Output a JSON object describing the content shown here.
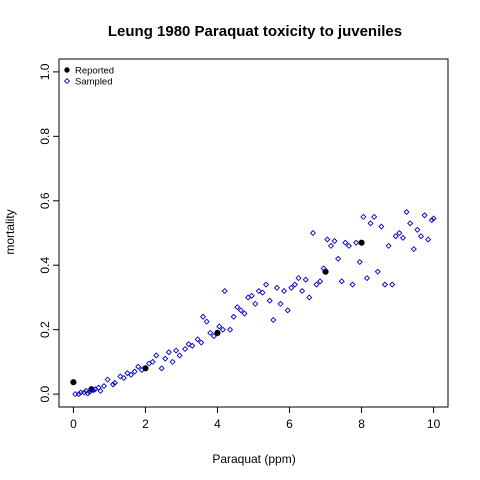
{
  "chart_data": {
    "type": "scatter",
    "title": "Leung 1980 Paraquat toxicity to juveniles",
    "xlabel": "Paraquat (ppm)",
    "ylabel": "mortality",
    "xlim": [
      -0.4,
      10.4
    ],
    "ylim": [
      -0.04,
      1.04
    ],
    "x_ticks": [
      "0",
      "2",
      "4",
      "6",
      "8",
      "10"
    ],
    "y_ticks": [
      "0.0",
      "0.2",
      "0.4",
      "0.6",
      "0.8",
      "1.0"
    ],
    "grid": false,
    "legend": {
      "position": "top-left",
      "entries": [
        {
          "label": "Reported",
          "marker": "filled-circle",
          "color": "#000000"
        },
        {
          "label": "Sampled",
          "marker": "open-diamond",
          "color": "#0000cc"
        }
      ]
    },
    "series": [
      {
        "name": "Reported",
        "marker": "filled-circle",
        "color": "#000000",
        "points": [
          {
            "x": 0.0,
            "y": 0.037
          },
          {
            "x": 0.5,
            "y": 0.015
          },
          {
            "x": 2.0,
            "y": 0.08
          },
          {
            "x": 4.0,
            "y": 0.19
          },
          {
            "x": 7.0,
            "y": 0.38
          },
          {
            "x": 8.0,
            "y": 0.47
          }
        ]
      },
      {
        "name": "Sampled",
        "marker": "open-diamond",
        "color": "#0000cc",
        "points": [
          {
            "x": 0.05,
            "y": 0.0
          },
          {
            "x": 0.15,
            "y": 0.0
          },
          {
            "x": 0.2,
            "y": 0.005
          },
          {
            "x": 0.3,
            "y": 0.005
          },
          {
            "x": 0.35,
            "y": 0.01
          },
          {
            "x": 0.4,
            "y": 0.002
          },
          {
            "x": 0.45,
            "y": 0.007
          },
          {
            "x": 0.55,
            "y": 0.012
          },
          {
            "x": 0.6,
            "y": 0.015
          },
          {
            "x": 0.7,
            "y": 0.02
          },
          {
            "x": 0.75,
            "y": 0.01
          },
          {
            "x": 0.85,
            "y": 0.025
          },
          {
            "x": 0.95,
            "y": 0.045
          },
          {
            "x": 1.1,
            "y": 0.03
          },
          {
            "x": 1.15,
            "y": 0.035
          },
          {
            "x": 1.3,
            "y": 0.055
          },
          {
            "x": 1.4,
            "y": 0.05
          },
          {
            "x": 1.5,
            "y": 0.065
          },
          {
            "x": 1.6,
            "y": 0.06
          },
          {
            "x": 1.7,
            "y": 0.07
          },
          {
            "x": 1.8,
            "y": 0.085
          },
          {
            "x": 1.9,
            "y": 0.075
          },
          {
            "x": 2.1,
            "y": 0.095
          },
          {
            "x": 2.2,
            "y": 0.1
          },
          {
            "x": 2.3,
            "y": 0.12
          },
          {
            "x": 2.45,
            "y": 0.08
          },
          {
            "x": 2.55,
            "y": 0.11
          },
          {
            "x": 2.65,
            "y": 0.13
          },
          {
            "x": 2.75,
            "y": 0.1
          },
          {
            "x": 2.85,
            "y": 0.135
          },
          {
            "x": 2.95,
            "y": 0.12
          },
          {
            "x": 3.1,
            "y": 0.14
          },
          {
            "x": 3.2,
            "y": 0.155
          },
          {
            "x": 3.3,
            "y": 0.15
          },
          {
            "x": 3.45,
            "y": 0.17
          },
          {
            "x": 3.55,
            "y": 0.16
          },
          {
            "x": 3.6,
            "y": 0.24
          },
          {
            "x": 3.7,
            "y": 0.225
          },
          {
            "x": 3.8,
            "y": 0.19
          },
          {
            "x": 3.9,
            "y": 0.18
          },
          {
            "x": 4.05,
            "y": 0.21
          },
          {
            "x": 4.15,
            "y": 0.2
          },
          {
            "x": 4.2,
            "y": 0.32
          },
          {
            "x": 4.35,
            "y": 0.2
          },
          {
            "x": 4.45,
            "y": 0.24
          },
          {
            "x": 4.55,
            "y": 0.27
          },
          {
            "x": 4.65,
            "y": 0.26
          },
          {
            "x": 4.75,
            "y": 0.25
          },
          {
            "x": 4.85,
            "y": 0.3
          },
          {
            "x": 4.95,
            "y": 0.305
          },
          {
            "x": 5.05,
            "y": 0.28
          },
          {
            "x": 5.15,
            "y": 0.32
          },
          {
            "x": 5.25,
            "y": 0.315
          },
          {
            "x": 5.35,
            "y": 0.34
          },
          {
            "x": 5.45,
            "y": 0.29
          },
          {
            "x": 5.55,
            "y": 0.23
          },
          {
            "x": 5.65,
            "y": 0.33
          },
          {
            "x": 5.75,
            "y": 0.28
          },
          {
            "x": 5.85,
            "y": 0.32
          },
          {
            "x": 5.95,
            "y": 0.26
          },
          {
            "x": 6.05,
            "y": 0.33
          },
          {
            "x": 6.15,
            "y": 0.34
          },
          {
            "x": 6.25,
            "y": 0.36
          },
          {
            "x": 6.35,
            "y": 0.32
          },
          {
            "x": 6.45,
            "y": 0.355
          },
          {
            "x": 6.55,
            "y": 0.3
          },
          {
            "x": 6.65,
            "y": 0.5
          },
          {
            "x": 6.75,
            "y": 0.34
          },
          {
            "x": 6.85,
            "y": 0.35
          },
          {
            "x": 6.95,
            "y": 0.39
          },
          {
            "x": 7.05,
            "y": 0.48
          },
          {
            "x": 7.15,
            "y": 0.46
          },
          {
            "x": 7.25,
            "y": 0.475
          },
          {
            "x": 7.35,
            "y": 0.42
          },
          {
            "x": 7.45,
            "y": 0.35
          },
          {
            "x": 7.55,
            "y": 0.47
          },
          {
            "x": 7.65,
            "y": 0.46
          },
          {
            "x": 7.75,
            "y": 0.34
          },
          {
            "x": 7.85,
            "y": 0.47
          },
          {
            "x": 7.95,
            "y": 0.41
          },
          {
            "x": 8.05,
            "y": 0.55
          },
          {
            "x": 8.15,
            "y": 0.36
          },
          {
            "x": 8.25,
            "y": 0.53
          },
          {
            "x": 8.35,
            "y": 0.55
          },
          {
            "x": 8.45,
            "y": 0.38
          },
          {
            "x": 8.55,
            "y": 0.52
          },
          {
            "x": 8.65,
            "y": 0.34
          },
          {
            "x": 8.75,
            "y": 0.46
          },
          {
            "x": 8.85,
            "y": 0.34
          },
          {
            "x": 8.95,
            "y": 0.49
          },
          {
            "x": 9.05,
            "y": 0.5
          },
          {
            "x": 9.15,
            "y": 0.485
          },
          {
            "x": 9.25,
            "y": 0.565
          },
          {
            "x": 9.35,
            "y": 0.53
          },
          {
            "x": 9.45,
            "y": 0.45
          },
          {
            "x": 9.55,
            "y": 0.51
          },
          {
            "x": 9.65,
            "y": 0.49
          },
          {
            "x": 9.75,
            "y": 0.555
          },
          {
            "x": 9.85,
            "y": 0.48
          },
          {
            "x": 9.95,
            "y": 0.54
          },
          {
            "x": 10.0,
            "y": 0.545
          }
        ]
      }
    ]
  }
}
